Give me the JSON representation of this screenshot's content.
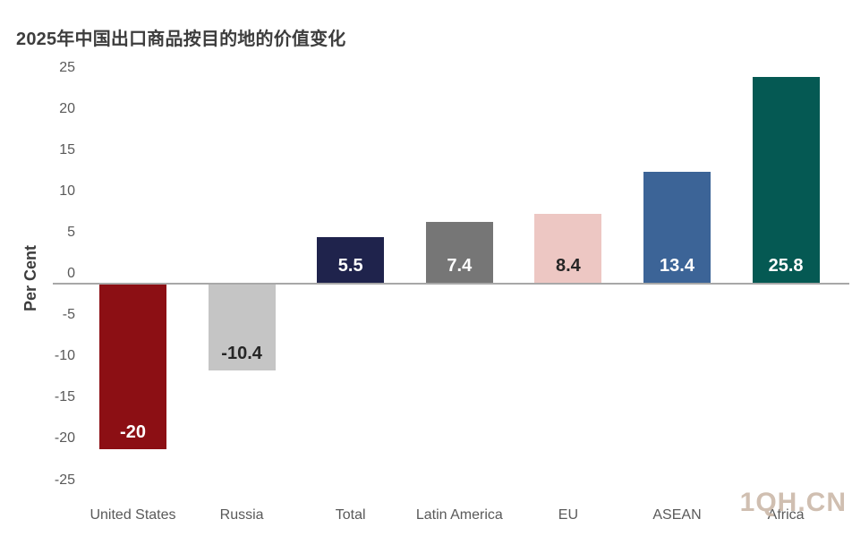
{
  "title": "2025年中国出口商品按目的地的价值变化",
  "watermark": "1QH.CN",
  "colors": {
    "title_text": "#3d3d3d",
    "axis_text": "#595959",
    "zero_line": "#a8a8a8",
    "watermark": "#cbb9a9",
    "background": "#ffffff"
  },
  "chart_data": {
    "type": "bar",
    "title": "2025年中国出口商品按目的地的价值变化",
    "xlabel": "",
    "ylabel": "Per Cent",
    "categories": [
      "United States",
      "Russia",
      "Total",
      "Latin America",
      "EU",
      "ASEAN",
      "Africa"
    ],
    "values": [
      -20,
      -10.4,
      5.5,
      7.4,
      8.4,
      13.4,
      25.8
    ],
    "data_labels": [
      "-20",
      "-10.4",
      "5.5",
      "7.4",
      "8.4",
      "13.4",
      "25.8"
    ],
    "bar_colors": [
      "#8c0f14",
      "#c5c5c5",
      "#1f234c",
      "#767676",
      "#edc7c3",
      "#3c6497",
      "#055953"
    ],
    "data_label_colors": [
      "#ffffff",
      "#262626",
      "#ffffff",
      "#ffffff",
      "#262626",
      "#ffffff",
      "#ffffff"
    ],
    "yticks": [
      25,
      20,
      15,
      10,
      5,
      0,
      -5,
      -10,
      -15,
      -20,
      -25
    ],
    "ylim": [
      -25,
      25
    ],
    "grid": false,
    "legend": false,
    "watermark": "1QH.CN"
  }
}
